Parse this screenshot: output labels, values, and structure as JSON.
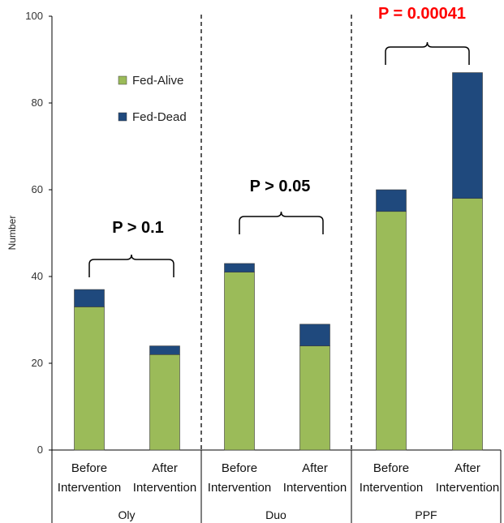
{
  "chart_data": {
    "type": "bar",
    "stacked": true,
    "ylabel": "Number",
    "ylim": [
      0,
      100
    ],
    "yticks": [
      0,
      20,
      40,
      60,
      80,
      100
    ],
    "grid": false,
    "legend_position": "top-left",
    "categories": [
      {
        "line1": "Before",
        "line2": "Intervention"
      },
      {
        "line1": "After",
        "line2": "Intervention"
      },
      {
        "line1": "Before",
        "line2": "Intervention"
      },
      {
        "line1": "After",
        "line2": "Intervention"
      },
      {
        "line1": "Before",
        "line2": "Intervention"
      },
      {
        "line1": "After",
        "line2": "Intervention"
      }
    ],
    "groups": [
      {
        "label": "Oly",
        "p_value": "P > 0.1",
        "p_color": "#000000"
      },
      {
        "label": "Duo",
        "p_value": "P > 0.05",
        "p_color": "#000000"
      },
      {
        "label": "PPF",
        "p_value": "P = 0.00041",
        "p_color": "#ff0000"
      }
    ],
    "series": [
      {
        "name": "Fed-Alive",
        "color": "#9bbb59",
        "values": [
          33,
          22,
          41,
          24,
          55,
          58
        ]
      },
      {
        "name": "Fed-Dead",
        "color": "#1f497d",
        "values": [
          4,
          2,
          2,
          5,
          5,
          29
        ]
      }
    ]
  }
}
